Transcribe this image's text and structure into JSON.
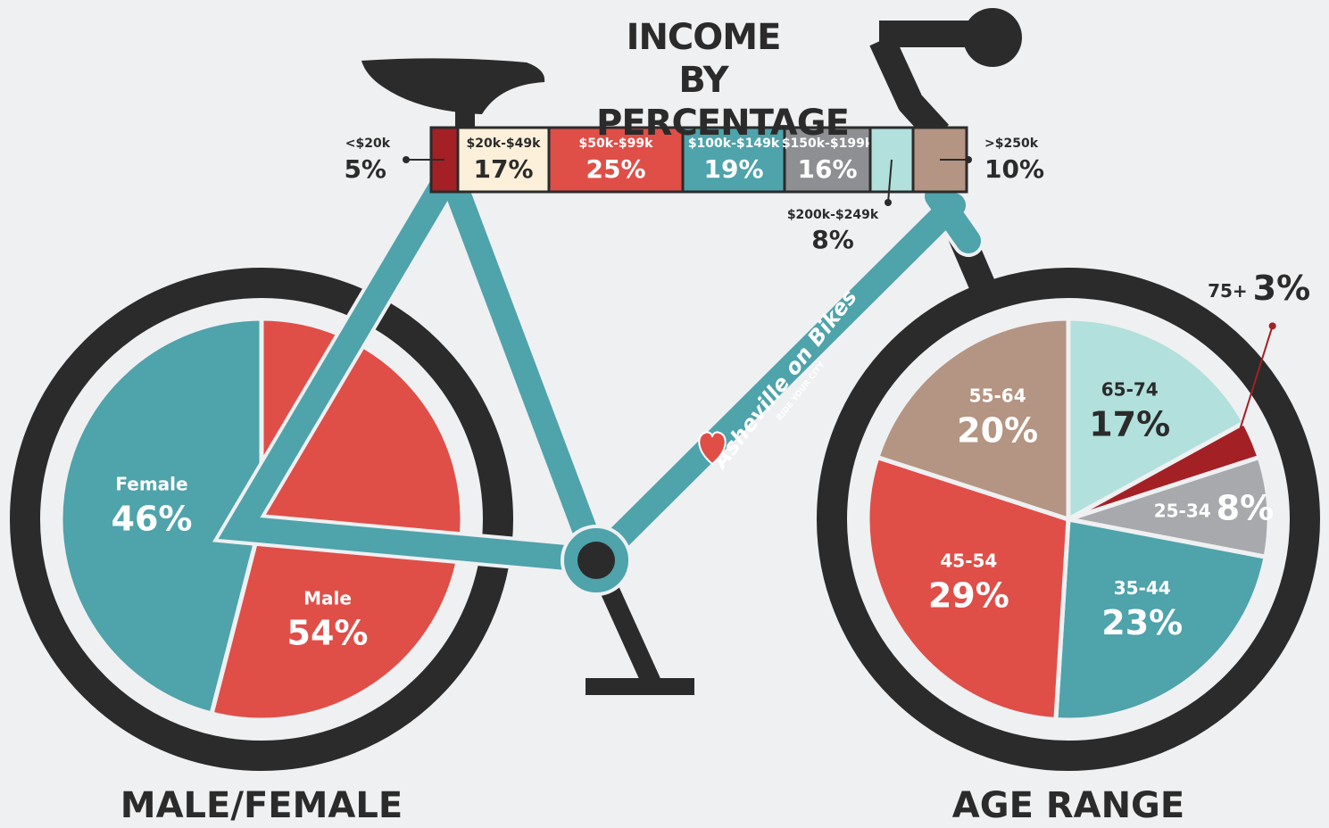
{
  "chart_data": [
    {
      "type": "bar",
      "title": "INCOME BY PERCENTAGE",
      "categories": [
        "<$20k",
        "$20k-$49k",
        "$50k-$99k",
        "$100k-$149k",
        "$150k-$199k",
        "$200k-$249k",
        ">$250k"
      ],
      "values": [
        5,
        17,
        25,
        19,
        16,
        8,
        10
      ],
      "value_labels": [
        "5%",
        "17%",
        "25%",
        "19%",
        "16%",
        "8%",
        "10%"
      ],
      "colors": [
        "#a32025",
        "#fdf0da",
        "#e04e48",
        "#4fa3ab",
        "#8d8f92",
        "#b2e0dc",
        "#b49482"
      ]
    },
    {
      "type": "pie",
      "title": "MALE/FEMALE",
      "categories": [
        "Male",
        "Female"
      ],
      "values": [
        54,
        46
      ],
      "value_labels": [
        "54%",
        "46%"
      ],
      "colors": [
        "#e04e48",
        "#4fa3ab"
      ]
    },
    {
      "type": "pie",
      "title": "AGE RANGE",
      "categories": [
        "65-74",
        "75+",
        "25-34",
        "35-44",
        "45-54",
        "55-64"
      ],
      "values": [
        17,
        3,
        8,
        23,
        29,
        20
      ],
      "value_labels": [
        "17%",
        "3%",
        "8%",
        "23%",
        "29%",
        "20%"
      ],
      "colors": [
        "#b2e0dc",
        "#a32025",
        "#a7a9ac",
        "#4fa3ab",
        "#e04e48",
        "#b49482"
      ]
    }
  ],
  "logo": {
    "name": "Asheville on Bikes",
    "tagline": "RIDE YOUR CITY"
  }
}
